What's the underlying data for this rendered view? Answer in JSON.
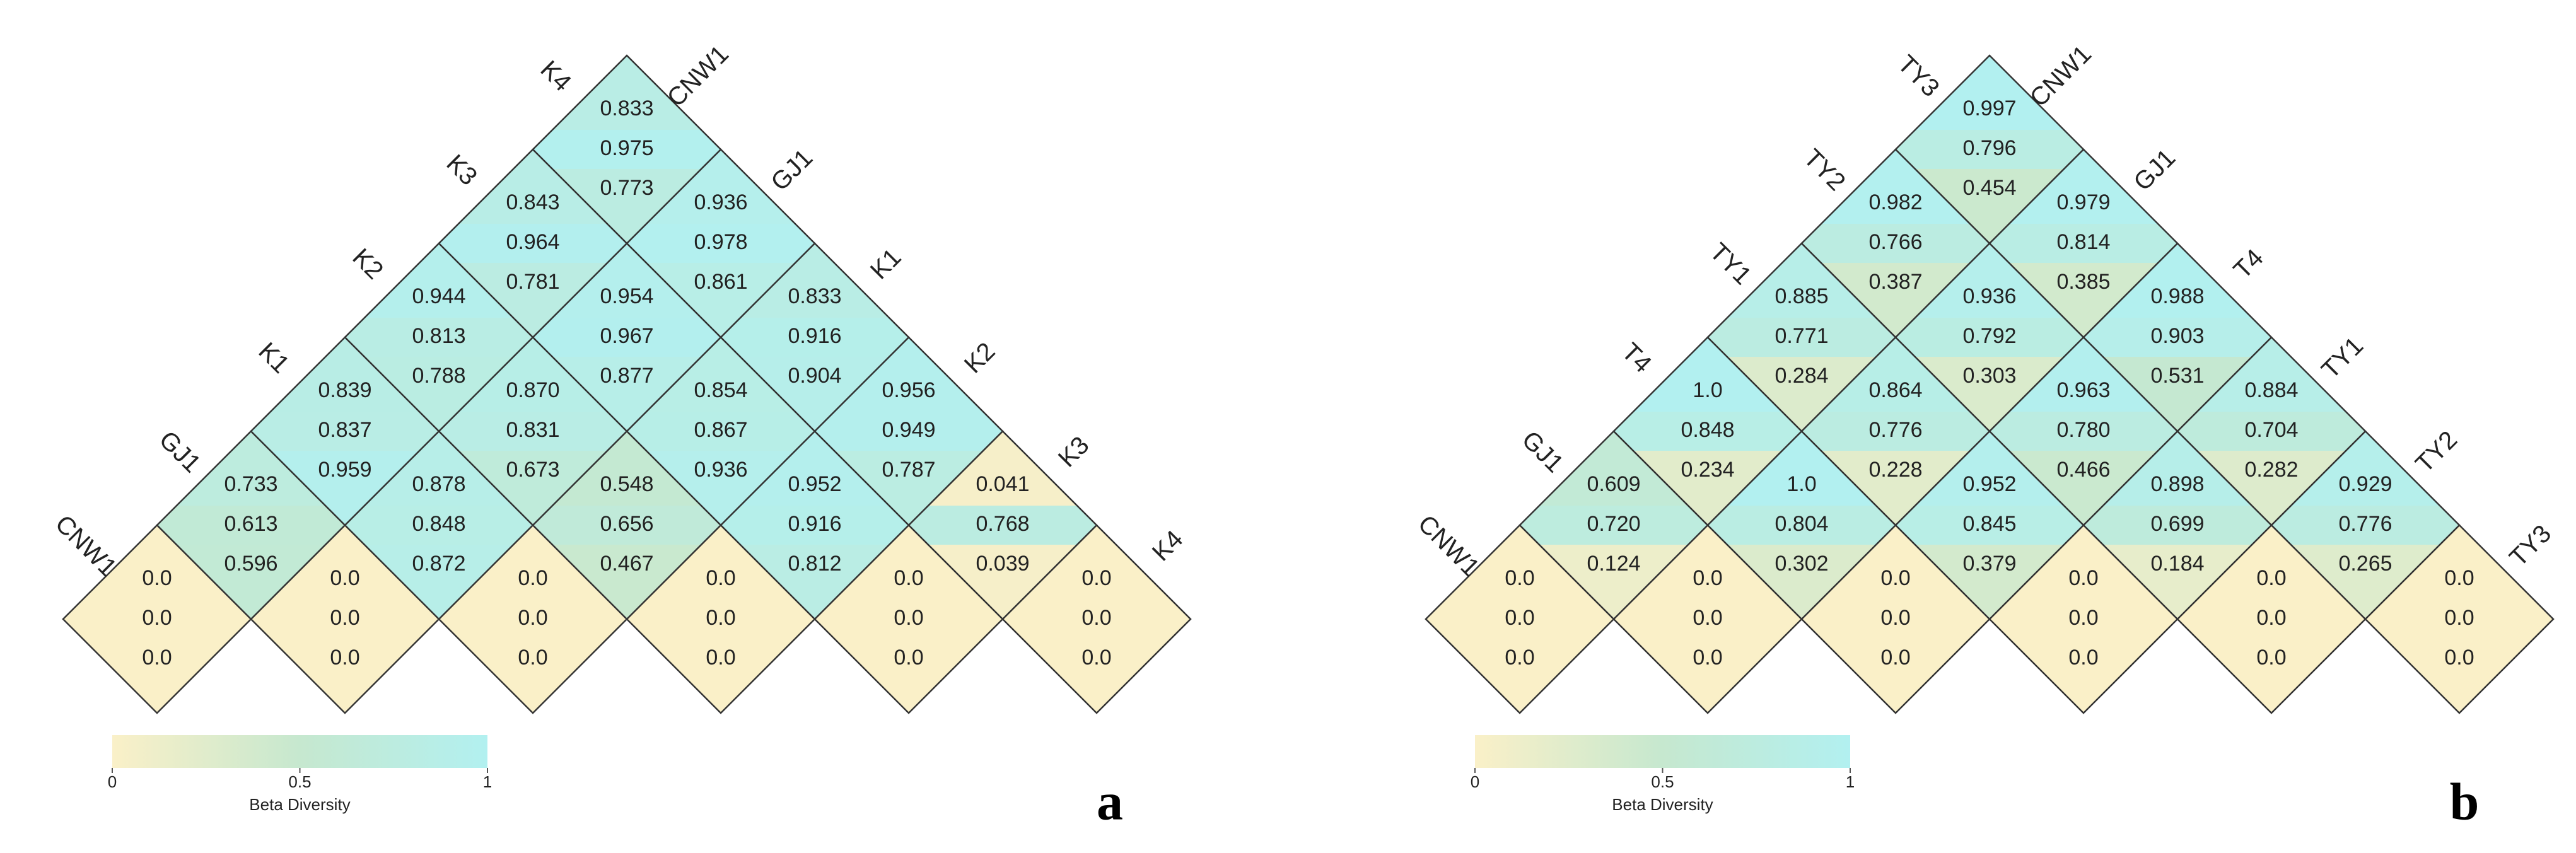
{
  "chart_data": [
    {
      "type": "triangle-heatmap",
      "labels": [
        "CNW1",
        "GJ1",
        "K1",
        "K2",
        "K3",
        "K4"
      ],
      "colormap": [
        "#faf0c8",
        "#c6e8cf",
        "#b2f0f0"
      ],
      "levels": [
        [
          {
            "values": [
              0,
              0,
              0
            ],
            "value_labels": [
              "0.0",
              "0.0",
              "0.0"
            ]
          },
          {
            "values": [
              0,
              0,
              0
            ],
            "value_labels": [
              "0.0",
              "0.0",
              "0.0"
            ]
          },
          {
            "values": [
              0,
              0,
              0
            ],
            "value_labels": [
              "0.0",
              "0.0",
              "0.0"
            ]
          },
          {
            "values": [
              0,
              0,
              0
            ],
            "value_labels": [
              "0.0",
              "0.0",
              "0.0"
            ]
          },
          {
            "values": [
              0,
              0,
              0
            ],
            "value_labels": [
              "0.0",
              "0.0",
              "0.0"
            ]
          },
          {
            "values": [
              0,
              0,
              0
            ],
            "value_labels": [
              "0.0",
              "0.0",
              "0.0"
            ]
          }
        ],
        [
          {
            "values": [
              0.733,
              0.613,
              0.596
            ],
            "value_labels": [
              "0.733",
              "0.613",
              "0.596"
            ]
          },
          {
            "values": [
              0.878,
              0.848,
              0.872
            ],
            "value_labels": [
              "0.878",
              "0.848",
              "0.872"
            ]
          },
          {
            "values": [
              0.548,
              0.656,
              0.467
            ],
            "value_labels": [
              "0.548",
              "0.656",
              "0.467"
            ]
          },
          {
            "values": [
              0.952,
              0.916,
              0.812
            ],
            "value_labels": [
              "0.952",
              "0.916",
              "0.812"
            ]
          },
          {
            "values": [
              0.041,
              0.768,
              0.039
            ],
            "value_labels": [
              "0.041",
              "0.768",
              "0.039"
            ]
          }
        ],
        [
          {
            "values": [
              0.839,
              0.837,
              0.959
            ],
            "value_labels": [
              "0.839",
              "0.837",
              "0.959"
            ]
          },
          {
            "values": [
              0.87,
              0.831,
              0.673
            ],
            "value_labels": [
              "0.870",
              "0.831",
              "0.673"
            ]
          },
          {
            "values": [
              0.854,
              0.867,
              0.936
            ],
            "value_labels": [
              "0.854",
              "0.867",
              "0.936"
            ]
          },
          {
            "values": [
              0.956,
              0.949,
              0.787
            ],
            "value_labels": [
              "0.956",
              "0.949",
              "0.787"
            ]
          }
        ],
        [
          {
            "values": [
              0.944,
              0.813,
              0.788
            ],
            "value_labels": [
              "0.944",
              "0.813",
              "0.788"
            ]
          },
          {
            "values": [
              0.954,
              0.967,
              0.877
            ],
            "value_labels": [
              "0.954",
              "0.967",
              "0.877"
            ]
          },
          {
            "values": [
              0.833,
              0.916,
              0.904
            ],
            "value_labels": [
              "0.833",
              "0.916",
              "0.904"
            ]
          }
        ],
        [
          {
            "values": [
              0.843,
              0.964,
              0.781
            ],
            "value_labels": [
              "0.843",
              "0.964",
              "0.781"
            ]
          },
          {
            "values": [
              0.936,
              0.978,
              0.861
            ],
            "value_labels": [
              "0.936",
              "0.978",
              "0.861"
            ]
          }
        ],
        [
          {
            "values": [
              0.833,
              0.975,
              0.773
            ],
            "value_labels": [
              "0.833",
              "0.975",
              "0.773"
            ]
          }
        ]
      ],
      "colorbar": {
        "label": "Beta Diversity",
        "lim": [
          0,
          1
        ],
        "ticks": [
          0,
          0.5,
          1
        ]
      },
      "panel_label": "a"
    },
    {
      "type": "triangle-heatmap",
      "labels": [
        "CNW1",
        "GJ1",
        "T4",
        "TY1",
        "TY2",
        "TY3"
      ],
      "colormap": [
        "#faf0c8",
        "#c6e8cf",
        "#b2f0f0"
      ],
      "levels": [
        [
          {
            "values": [
              0,
              0,
              0
            ],
            "value_labels": [
              "0.0",
              "0.0",
              "0.0"
            ]
          },
          {
            "values": [
              0,
              0,
              0
            ],
            "value_labels": [
              "0.0",
              "0.0",
              "0.0"
            ]
          },
          {
            "values": [
              0,
              0,
              0
            ],
            "value_labels": [
              "0.0",
              "0.0",
              "0.0"
            ]
          },
          {
            "values": [
              0,
              0,
              0
            ],
            "value_labels": [
              "0.0",
              "0.0",
              "0.0"
            ]
          },
          {
            "values": [
              0,
              0,
              0
            ],
            "value_labels": [
              "0.0",
              "0.0",
              "0.0"
            ]
          },
          {
            "values": [
              0,
              0,
              0
            ],
            "value_labels": [
              "0.0",
              "0.0",
              "0.0"
            ]
          }
        ],
        [
          {
            "values": [
              0.609,
              0.72,
              0.124
            ],
            "value_labels": [
              "0.609",
              "0.720",
              "0.124"
            ]
          },
          {
            "values": [
              1,
              0.804,
              0.302
            ],
            "value_labels": [
              "1.0",
              "0.804",
              "0.302"
            ]
          },
          {
            "values": [
              0.952,
              0.845,
              0.379
            ],
            "value_labels": [
              "0.952",
              "0.845",
              "0.379"
            ]
          },
          {
            "values": [
              0.898,
              0.699,
              0.184
            ],
            "value_labels": [
              "0.898",
              "0.699",
              "0.184"
            ]
          },
          {
            "values": [
              0.929,
              0.776,
              0.265
            ],
            "value_labels": [
              "0.929",
              "0.776",
              "0.265"
            ]
          }
        ],
        [
          {
            "values": [
              1,
              0.848,
              0.234
            ],
            "value_labels": [
              "1.0",
              "0.848",
              "0.234"
            ]
          },
          {
            "values": [
              0.864,
              0.776,
              0.228
            ],
            "value_labels": [
              "0.864",
              "0.776",
              "0.228"
            ]
          },
          {
            "values": [
              0.963,
              0.78,
              0.466
            ],
            "value_labels": [
              "0.963",
              "0.780",
              "0.466"
            ]
          },
          {
            "values": [
              0.884,
              0.704,
              0.282
            ],
            "value_labels": [
              "0.884",
              "0.704",
              "0.282"
            ]
          }
        ],
        [
          {
            "values": [
              0.885,
              0.771,
              0.284
            ],
            "value_labels": [
              "0.885",
              "0.771",
              "0.284"
            ]
          },
          {
            "values": [
              0.936,
              0.792,
              0.303
            ],
            "value_labels": [
              "0.936",
              "0.792",
              "0.303"
            ]
          },
          {
            "values": [
              0.988,
              0.903,
              0.531
            ],
            "value_labels": [
              "0.988",
              "0.903",
              "0.531"
            ]
          }
        ],
        [
          {
            "values": [
              0.982,
              0.766,
              0.387
            ],
            "value_labels": [
              "0.982",
              "0.766",
              "0.387"
            ]
          },
          {
            "values": [
              0.979,
              0.814,
              0.385
            ],
            "value_labels": [
              "0.979",
              "0.814",
              "0.385"
            ]
          }
        ],
        [
          {
            "values": [
              0.997,
              0.796,
              0.454
            ],
            "value_labels": [
              "0.997",
              "0.796",
              "0.454"
            ]
          }
        ]
      ],
      "colorbar": {
        "label": "Beta Diversity",
        "lim": [
          0,
          1
        ],
        "ticks": [
          0,
          0.5,
          1
        ]
      },
      "panel_label": "b"
    }
  ]
}
